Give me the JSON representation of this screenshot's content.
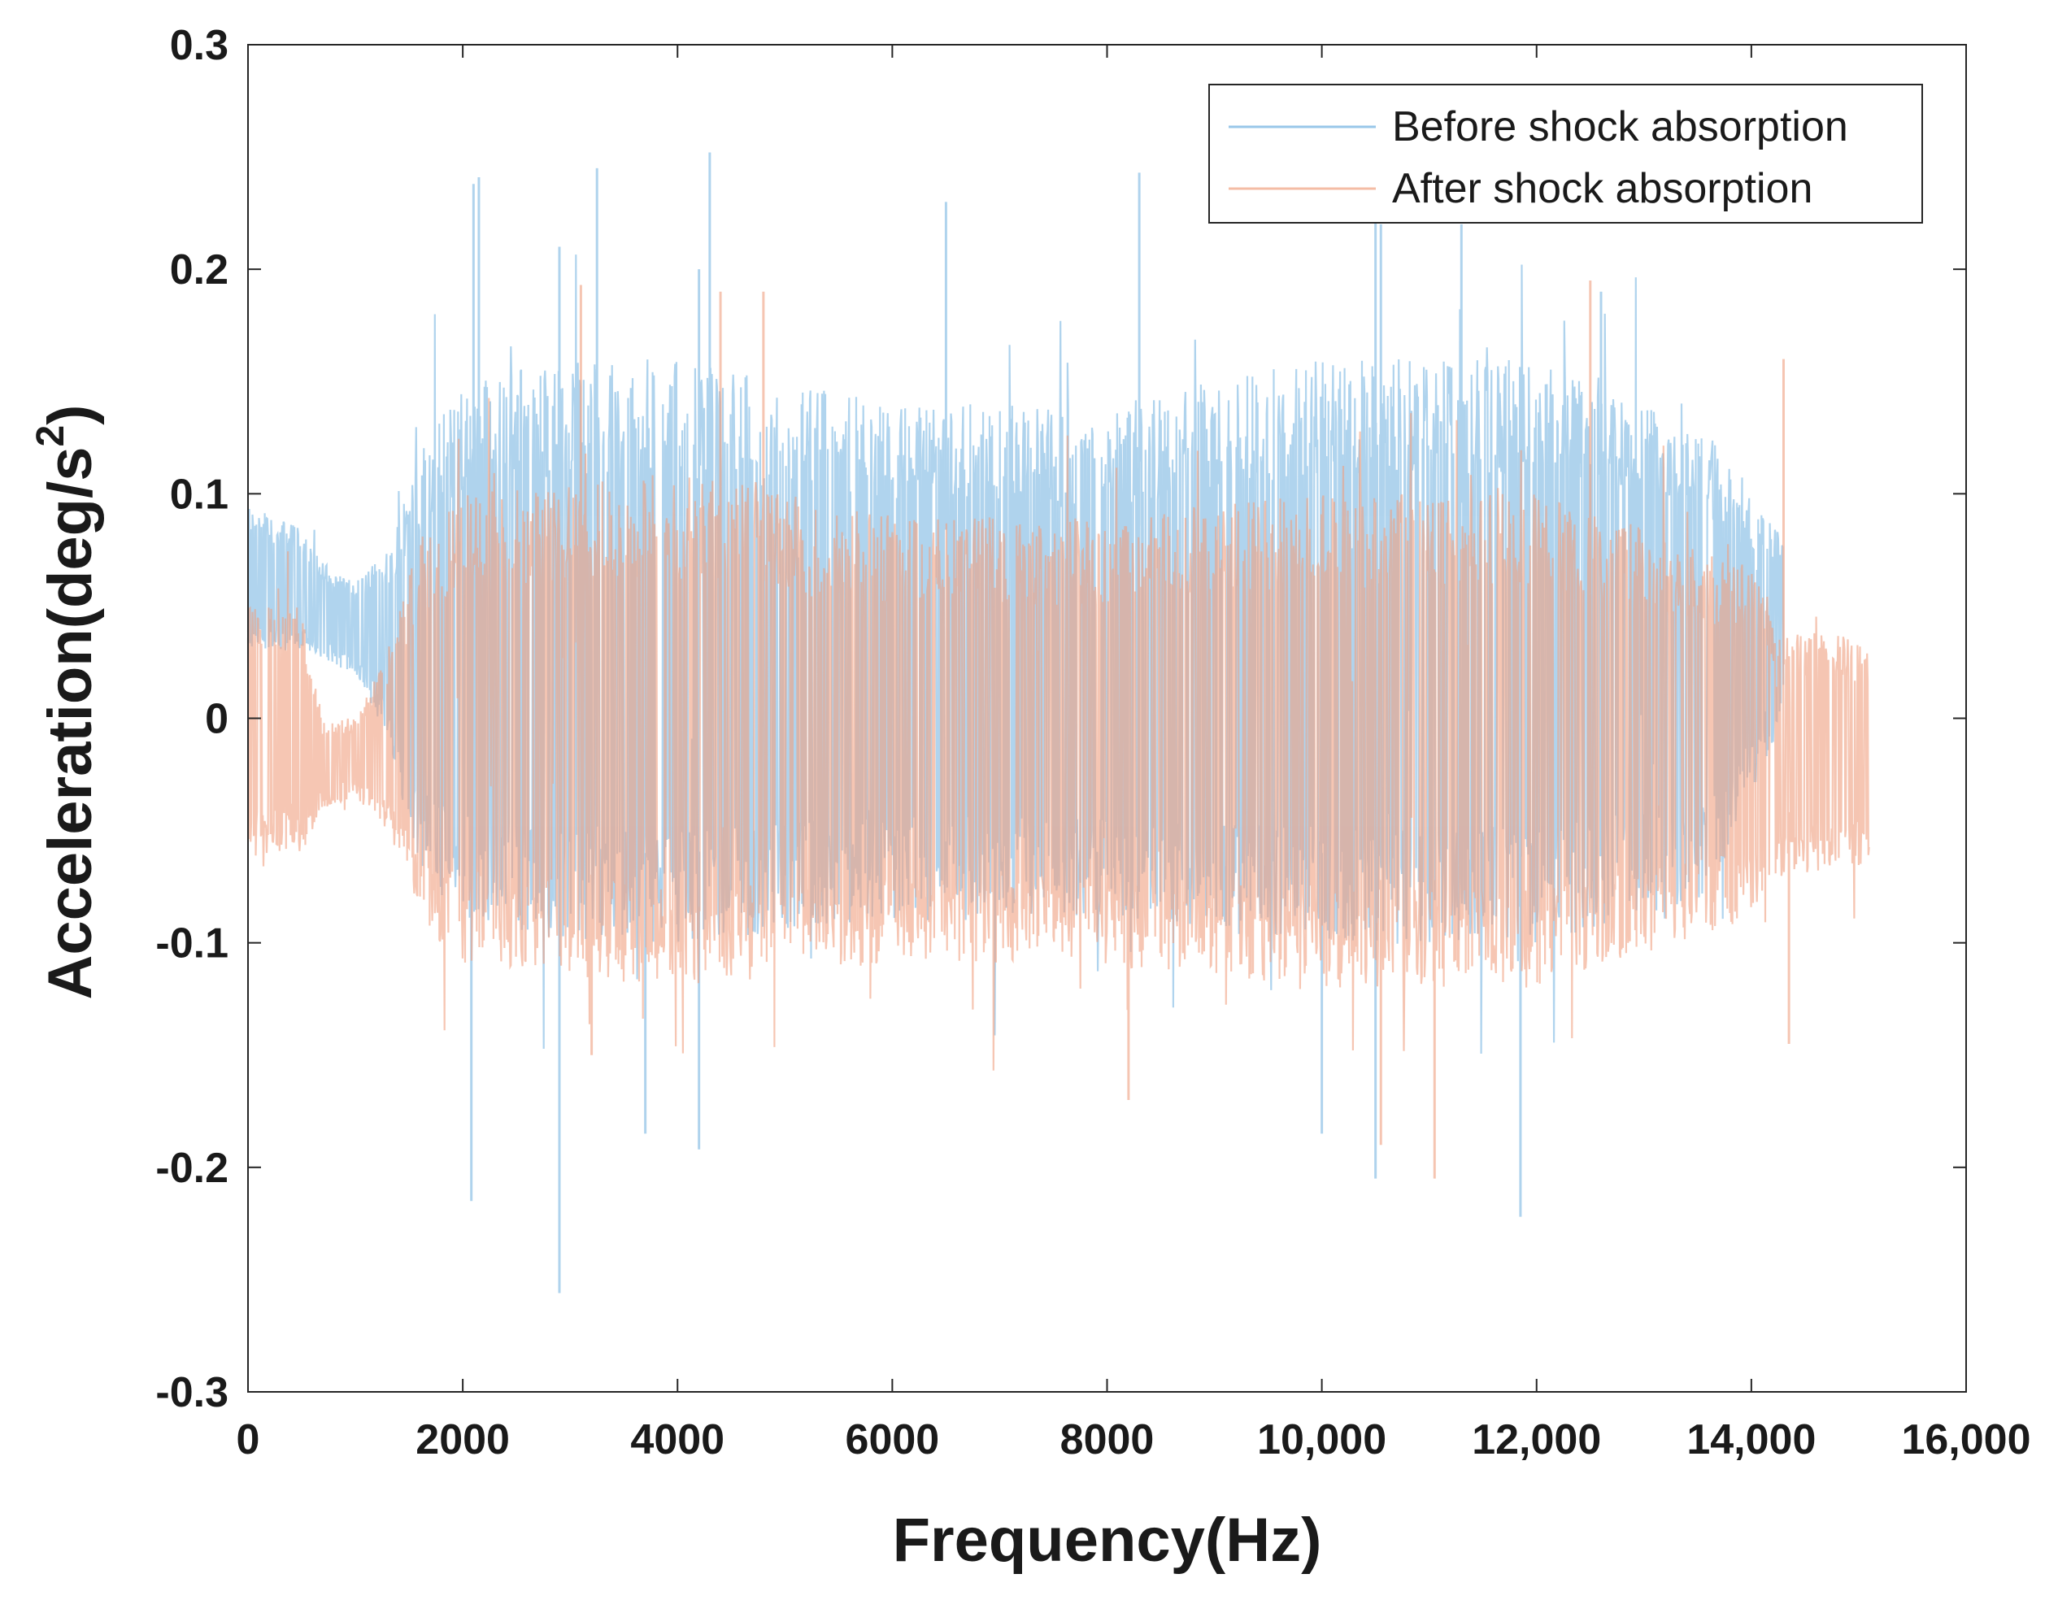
{
  "chart_data": {
    "type": "line",
    "title": "",
    "xlabel": "Frequency(Hz)",
    "ylabel_main": "Acceleration(deg/s",
    "ylabel_sup": "2",
    "ylabel_close": ")",
    "xlim": [
      0,
      16000
    ],
    "ylim": [
      -0.3,
      0.3
    ],
    "x_ticks": [
      0,
      2000,
      4000,
      6000,
      8000,
      10000,
      12000,
      14000,
      16000
    ],
    "x_tick_labels": [
      "0",
      "2000",
      "4000",
      "6000",
      "8000",
      "10,000",
      "12,000",
      "14,000",
      "16,000"
    ],
    "y_ticks": [
      -0.3,
      -0.2,
      -0.1,
      0,
      0.1,
      0.2,
      0.3
    ],
    "y_tick_labels": [
      "-0.3",
      "-0.2",
      "-0.1",
      "0",
      "0.1",
      "0.2",
      "0.3"
    ],
    "grid": false,
    "legend_position": "top-right",
    "series": [
      {
        "name": "Before shock absorption",
        "color": "#6fb0e0",
        "x_start": 0,
        "x_end": 14300,
        "envelope": [
          {
            "x": 0,
            "upper": 0.095,
            "lower": 0.03
          },
          {
            "x": 500,
            "upper": 0.085,
            "lower": 0.03
          },
          {
            "x": 700,
            "upper": 0.07,
            "lower": 0.025
          },
          {
            "x": 1000,
            "upper": 0.06,
            "lower": 0.02
          },
          {
            "x": 1300,
            "upper": 0.075,
            "lower": -0.01
          },
          {
            "x": 1600,
            "upper": 0.12,
            "lower": -0.07
          },
          {
            "x": 2000,
            "upper": 0.15,
            "lower": -0.09
          },
          {
            "x": 3000,
            "upper": 0.16,
            "lower": -0.1
          },
          {
            "x": 4000,
            "upper": 0.16,
            "lower": -0.1
          },
          {
            "x": 6000,
            "upper": 0.14,
            "lower": -0.09
          },
          {
            "x": 8000,
            "upper": 0.14,
            "lower": -0.09
          },
          {
            "x": 10000,
            "upper": 0.16,
            "lower": -0.1
          },
          {
            "x": 12000,
            "upper": 0.16,
            "lower": -0.1
          },
          {
            "x": 13600,
            "upper": 0.13,
            "lower": -0.08
          },
          {
            "x": 14300,
            "upper": 0.08,
            "lower": 0.0
          }
        ],
        "peaks": [
          {
            "x": 2100,
            "y": 0.238
          },
          {
            "x": 2150,
            "y": 0.241
          },
          {
            "x": 2900,
            "y": 0.21
          },
          {
            "x": 3250,
            "y": 0.245
          },
          {
            "x": 4300,
            "y": 0.252
          },
          {
            "x": 4200,
            "y": 0.2
          },
          {
            "x": 6500,
            "y": 0.23
          },
          {
            "x": 8300,
            "y": 0.243
          },
          {
            "x": 10500,
            "y": 0.24
          },
          {
            "x": 10550,
            "y": 0.22
          },
          {
            "x": 11300,
            "y": 0.22
          },
          {
            "x": 12600,
            "y": 0.19
          },
          {
            "x": 2080,
            "y": -0.215
          },
          {
            "x": 2900,
            "y": -0.256
          },
          {
            "x": 3700,
            "y": -0.185
          },
          {
            "x": 4200,
            "y": -0.192
          },
          {
            "x": 10000,
            "y": -0.185
          },
          {
            "x": 10500,
            "y": -0.205
          },
          {
            "x": 11850,
            "y": -0.222
          }
        ]
      },
      {
        "name": "After shock absorption",
        "color": "#f0a080",
        "x_start": 0,
        "x_end": 15100,
        "envelope": [
          {
            "x": 0,
            "upper": 0.05,
            "lower": -0.06
          },
          {
            "x": 500,
            "upper": 0.05,
            "lower": -0.06
          },
          {
            "x": 700,
            "upper": 0.0,
            "lower": -0.04
          },
          {
            "x": 1000,
            "upper": 0.0,
            "lower": -0.035
          },
          {
            "x": 1300,
            "upper": 0.03,
            "lower": -0.05
          },
          {
            "x": 1600,
            "upper": 0.08,
            "lower": -0.09
          },
          {
            "x": 2000,
            "upper": 0.1,
            "lower": -0.11
          },
          {
            "x": 4000,
            "upper": 0.11,
            "lower": -0.12
          },
          {
            "x": 6000,
            "upper": 0.09,
            "lower": -0.11
          },
          {
            "x": 8000,
            "upper": 0.09,
            "lower": -0.11
          },
          {
            "x": 10000,
            "upper": 0.1,
            "lower": -0.12
          },
          {
            "x": 12000,
            "upper": 0.1,
            "lower": -0.12
          },
          {
            "x": 14000,
            "upper": 0.07,
            "lower": -0.09
          },
          {
            "x": 14300,
            "upper": 0.04,
            "lower": -0.07
          },
          {
            "x": 15100,
            "upper": 0.035,
            "lower": -0.065
          }
        ],
        "peaks": [
          {
            "x": 3100,
            "y": 0.193
          },
          {
            "x": 4400,
            "y": 0.19
          },
          {
            "x": 4800,
            "y": 0.19
          },
          {
            "x": 12500,
            "y": 0.195
          },
          {
            "x": 14300,
            "y": 0.16
          },
          {
            "x": 3200,
            "y": -0.15
          },
          {
            "x": 8200,
            "y": -0.17
          },
          {
            "x": 11050,
            "y": -0.205
          },
          {
            "x": 14350,
            "y": -0.145
          },
          {
            "x": 10550,
            "y": -0.19
          }
        ]
      }
    ]
  }
}
